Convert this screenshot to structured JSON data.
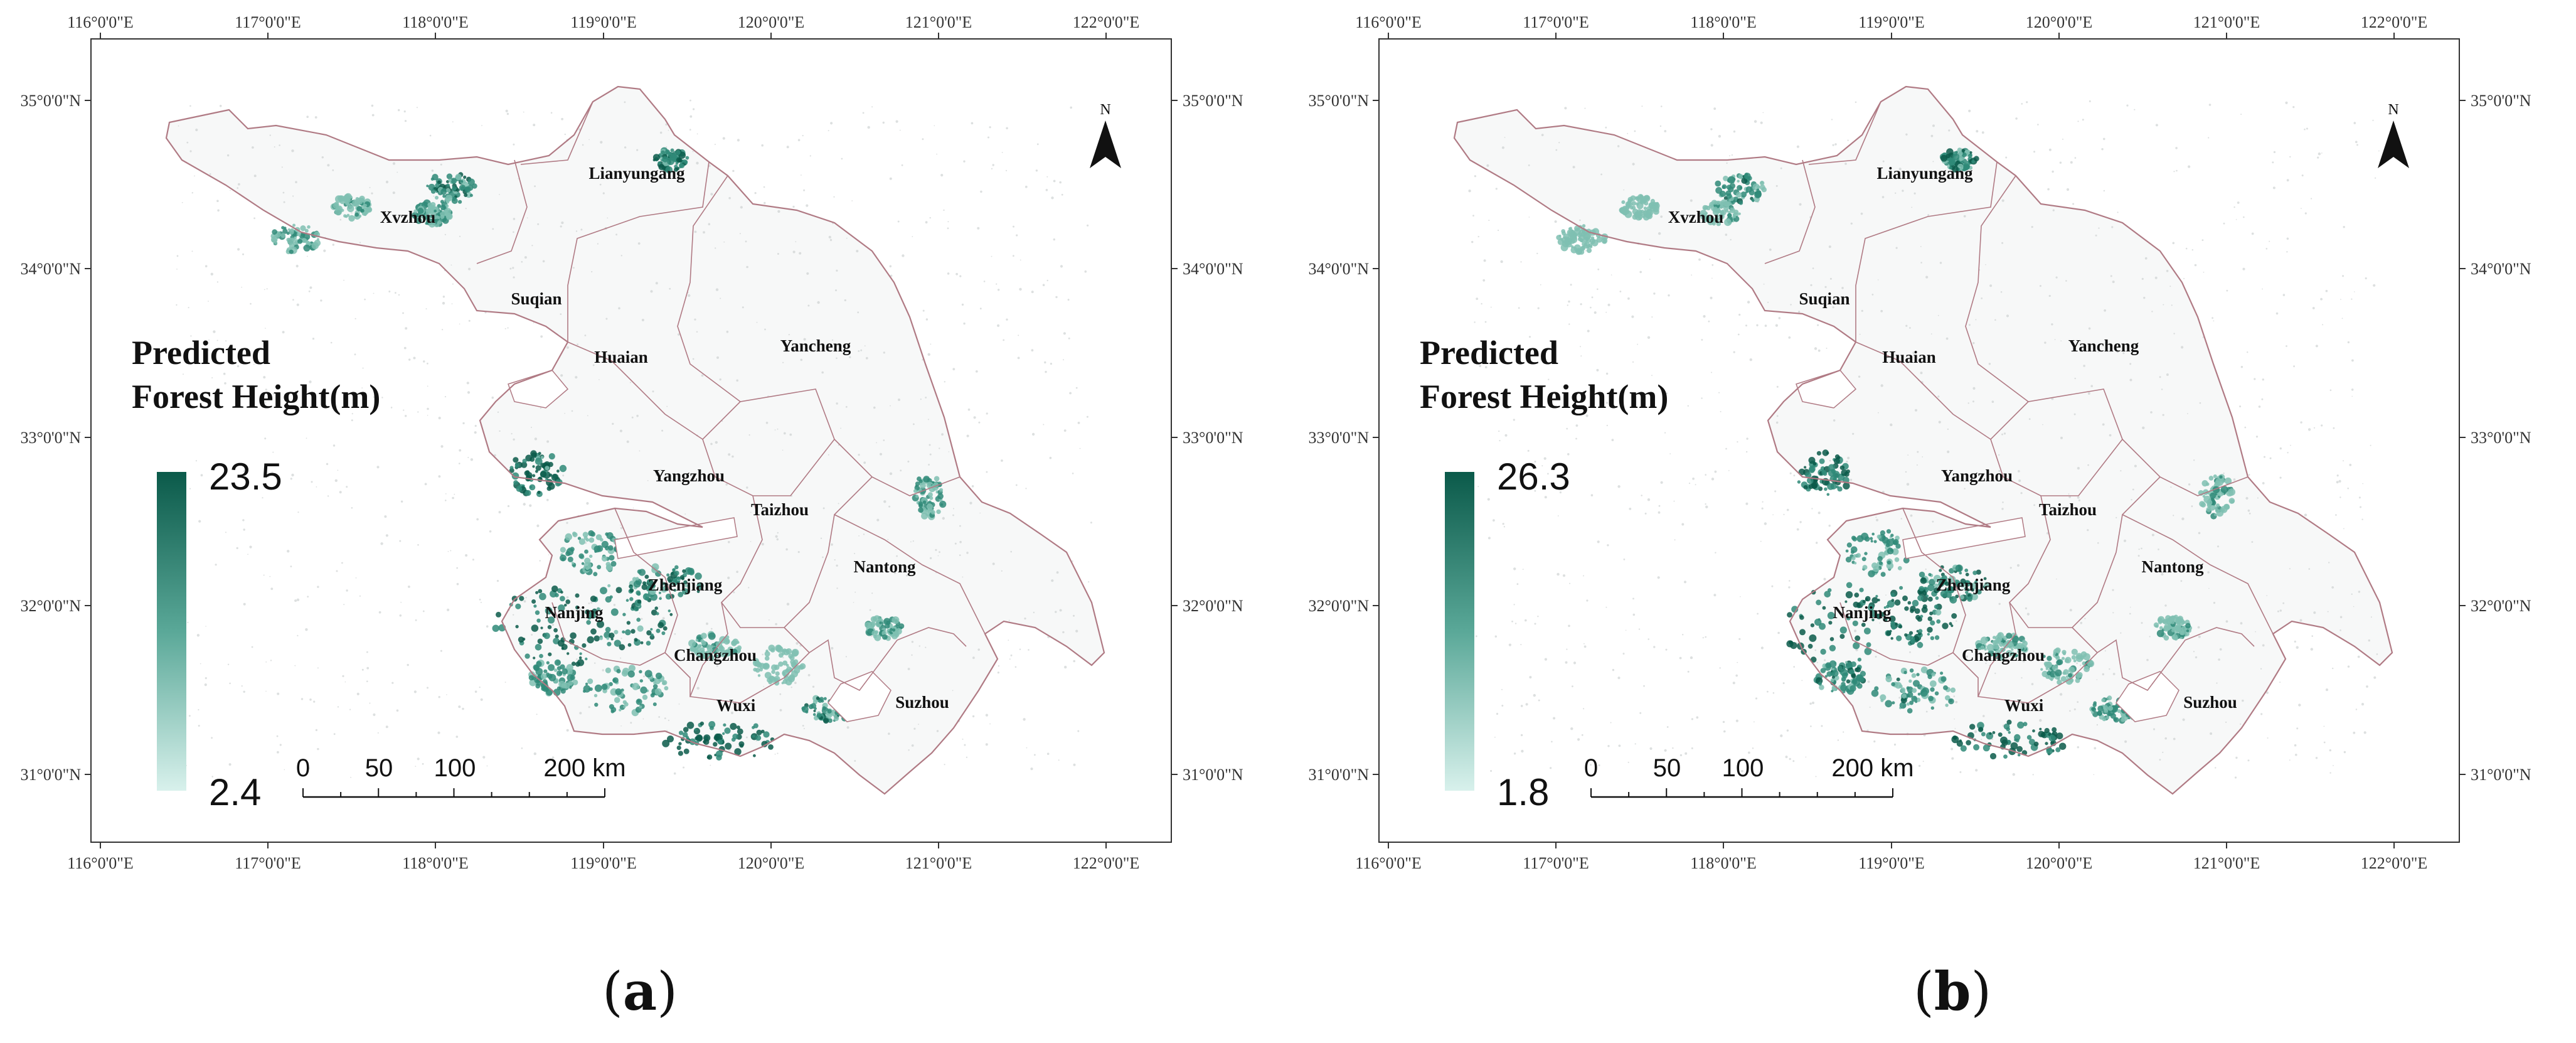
{
  "panels": [
    {
      "id": "a",
      "label_open": "(",
      "label_letter": "a",
      "label_close": ")",
      "legend": {
        "title_line1": "Predicted",
        "title_line2": "Forest Height(m)",
        "max": "23.5",
        "min": "2.4"
      }
    },
    {
      "id": "b",
      "label_open": "(",
      "label_letter": "b",
      "label_close": ")",
      "legend": {
        "title_line1": "Predicted",
        "title_line2": "Forest Height(m)",
        "max": "26.3",
        "min": "1.8"
      }
    }
  ],
  "axes": {
    "lon_labels": [
      "116°0'0\"E",
      "117°0'0\"E",
      "118°0'0\"E",
      "119°0'0\"E",
      "120°0'0\"E",
      "121°0'0\"E",
      "122°0'0\"E"
    ],
    "lat_labels": [
      "35°0'0\"N",
      "34°0'0\"N",
      "33°0'0\"N",
      "32°0'0\"N",
      "31°0'0\"N"
    ]
  },
  "cities": [
    {
      "name": "Lianyungang"
    },
    {
      "name": "Xvzhou"
    },
    {
      "name": "Suqian"
    },
    {
      "name": "Huaian"
    },
    {
      "name": "Yancheng"
    },
    {
      "name": "Yangzhou"
    },
    {
      "name": "Taizhou"
    },
    {
      "name": "Nantong"
    },
    {
      "name": "Zhenjiang"
    },
    {
      "name": "Nanjing"
    },
    {
      "name": "Changzhou"
    },
    {
      "name": "Wuxi"
    },
    {
      "name": "Suzhou"
    }
  ],
  "scale_bar": {
    "labels": [
      "0",
      "50",
      "100",
      "200 km"
    ]
  },
  "north_arrow": {
    "label": "N"
  },
  "colors": {
    "ramp_dark": "#0b5a4a",
    "ramp_light": "#d8f1ec",
    "boundary": "#b07a84",
    "frame": "#333333"
  }
}
